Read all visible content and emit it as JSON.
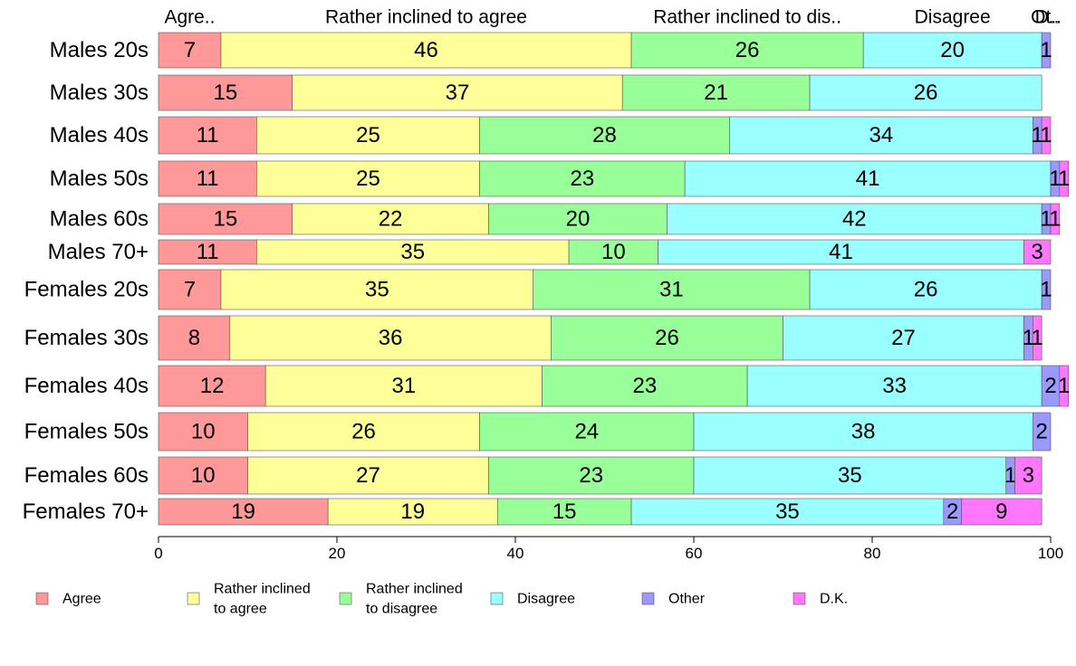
{
  "chart_data": {
    "type": "bar",
    "orientation": "horizontal",
    "stacked": true,
    "xlim": [
      0,
      100
    ],
    "xticks": [
      0,
      20,
      40,
      60,
      80,
      100
    ],
    "grid": false,
    "legend_position": "bottom",
    "top_labels": [
      "Agre..",
      "Rather inclined to agree",
      "Rather inclined to dis..",
      "Disagree",
      "Ot..",
      "D.."
    ],
    "categories": [
      "Males 20s",
      "Males 30s",
      "Males 40s",
      "Males 50s",
      "Males 60s",
      "Males 70+",
      "Females 20s",
      "Females 30s",
      "Females 40s",
      "Females 50s",
      "Females 60s",
      "Females 70+"
    ],
    "series": [
      {
        "name": "Agree",
        "legend_lines": [
          "Agree"
        ],
        "color": "#ff9999",
        "values": [
          7,
          15,
          11,
          11,
          15,
          11,
          7,
          8,
          12,
          10,
          10,
          19
        ]
      },
      {
        "name": "Rather inclined to agree",
        "legend_lines": [
          "Rather inclined",
          "to agree"
        ],
        "color": "#ffff99",
        "values": [
          46,
          37,
          25,
          25,
          22,
          35,
          35,
          36,
          31,
          26,
          27,
          19
        ]
      },
      {
        "name": "Rather inclined to disagree",
        "legend_lines": [
          "Rather inclined",
          "to disagree"
        ],
        "color": "#99ff99",
        "values": [
          26,
          21,
          28,
          23,
          20,
          10,
          31,
          26,
          23,
          24,
          23,
          15
        ]
      },
      {
        "name": "Disagree",
        "legend_lines": [
          "Disagree"
        ],
        "color": "#99ffff",
        "values": [
          20,
          26,
          34,
          41,
          42,
          41,
          26,
          27,
          33,
          38,
          35,
          35
        ]
      },
      {
        "name": "Other",
        "legend_lines": [
          "Other"
        ],
        "color": "#9999ff",
        "values": [
          1,
          0,
          1,
          1,
          1,
          0,
          1,
          1,
          2,
          2,
          1,
          2
        ]
      },
      {
        "name": "D.K.",
        "legend_lines": [
          "D.K."
        ],
        "color": "#ff77ff",
        "values": [
          0,
          0,
          1,
          1,
          1,
          3,
          0,
          1,
          1,
          0,
          3,
          9
        ]
      }
    ]
  }
}
